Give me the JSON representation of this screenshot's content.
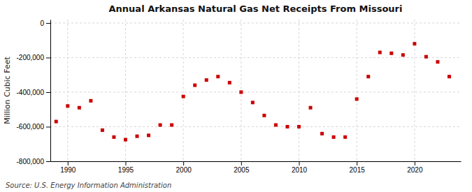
{
  "chart_data": {
    "type": "scatter",
    "title": "Annual Arkansas Natural Gas Net Receipts From Missouri",
    "ylabel": "Million Cubic Feet",
    "annotations": [
      "Source: U.S. Energy Information Administration"
    ],
    "x": [
      1989,
      1990,
      1991,
      1992,
      1993,
      1994,
      1995,
      1996,
      1997,
      1998,
      1999,
      2000,
      2001,
      2002,
      2003,
      2004,
      2005,
      2006,
      2007,
      2008,
      2009,
      2010,
      2011,
      2012,
      2013,
      2014,
      2015,
      2016,
      2017,
      2018,
      2019,
      2020,
      2021,
      2022,
      2023
    ],
    "values": [
      -570000,
      -480000,
      -490000,
      -450000,
      -620000,
      -660000,
      -675000,
      -655000,
      -650000,
      -590000,
      -590000,
      -425000,
      -360000,
      -330000,
      -310000,
      -345000,
      -400000,
      -460000,
      -535000,
      -590000,
      -600000,
      -600000,
      -490000,
      -640000,
      -660000,
      -660000,
      -440000,
      -310000,
      -170000,
      -175000,
      -185000,
      -120000,
      -195000,
      -225000,
      -310000
    ],
    "color": "#cc0000",
    "marker": "square",
    "xlim": [
      1988.5,
      2024
    ],
    "ylim": [
      -800000,
      20000
    ],
    "xticks": [
      1990,
      1995,
      2000,
      2005,
      2010,
      2015,
      2020
    ],
    "yticks": [
      0,
      {
        "value": -200000,
        "label": "-200,000"
      },
      {
        "value": -400000,
        "label": "-400,000"
      },
      {
        "value": -600000,
        "label": "-600,000"
      },
      {
        "value": -800000,
        "label": "-800,000"
      }
    ],
    "grid": true
  }
}
